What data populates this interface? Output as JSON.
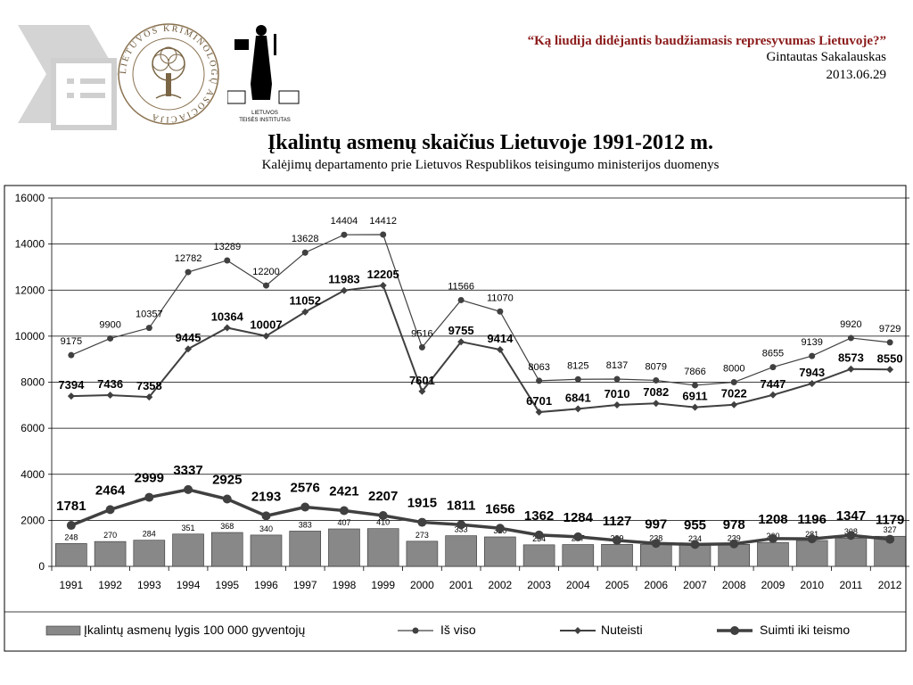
{
  "header": {
    "quote": "“Ką liudija didėjantis baudžiamasis represyvumas Lietuvoje?”",
    "author": "Gintautas Sakalauskas",
    "date": "2013.06.29"
  },
  "logos": {
    "left_text": "LIETUVOS KRIMINOLOGŲ ASOCIACIJA",
    "right_text_line1": "LIETUVOS",
    "right_text_line2": "TEISĖS INSTITUTAS"
  },
  "chart_data": {
    "type": "bar+line",
    "title": "Įkalintų asmenų skaičius Lietuvoje 1991-2012 m.",
    "subtitle": "Kalėjimų departamento prie Lietuvos Respublikos teisingumo ministerijos duomenys",
    "categories": [
      "1991",
      "1992",
      "1993",
      "1994",
      "1995",
      "1996",
      "1997",
      "1998",
      "1999",
      "2000",
      "2001",
      "2002",
      "2003",
      "2004",
      "2005",
      "2006",
      "2007",
      "2008",
      "2009",
      "2010",
      "2011",
      "2012"
    ],
    "ylim": [
      0,
      16000
    ],
    "yticks": [
      "0",
      "2000",
      "4000",
      "6000",
      "8000",
      "10000",
      "12000",
      "14000",
      "16000"
    ],
    "grid": "horizontal",
    "legend_position": "bottom",
    "series": [
      {
        "name": "Įkalintų asmenų lygis 100 000 gyventojų",
        "type": "bar",
        "color": "#888888",
        "values": [
          248,
          270,
          284,
          351,
          368,
          340,
          383,
          407,
          410,
          273,
          333,
          320,
          234,
          237,
          239,
          238,
          234,
          239,
          260,
          281,
          308,
          327
        ]
      },
      {
        "name": "Iš viso",
        "type": "line",
        "marker": "circle",
        "color": "#404040",
        "values": [
          9175,
          9900,
          10357,
          12782,
          13289,
          12200,
          13628,
          14404,
          14412,
          9516,
          11566,
          11070,
          8063,
          8125,
          8137,
          8079,
          7866,
          8000,
          8655,
          9139,
          9920,
          9729
        ]
      },
      {
        "name": "Nuteisti",
        "type": "line",
        "marker": "diamond",
        "color": "#404040",
        "values": [
          7394,
          7436,
          7358,
          9445,
          10364,
          10007,
          11052,
          11983,
          12205,
          7601,
          9755,
          9414,
          6701,
          6841,
          7010,
          7082,
          6911,
          7022,
          7447,
          7943,
          8573,
          8550
        ]
      },
      {
        "name": "Suimti iki teismo",
        "type": "line",
        "marker": "circle-large",
        "color": "#404040",
        "values": [
          1781,
          2464,
          2999,
          3337,
          2925,
          2193,
          2576,
          2421,
          2207,
          1915,
          1811,
          1656,
          1362,
          1284,
          1127,
          997,
          955,
          978,
          1208,
          1196,
          1347,
          1179
        ]
      }
    ]
  }
}
